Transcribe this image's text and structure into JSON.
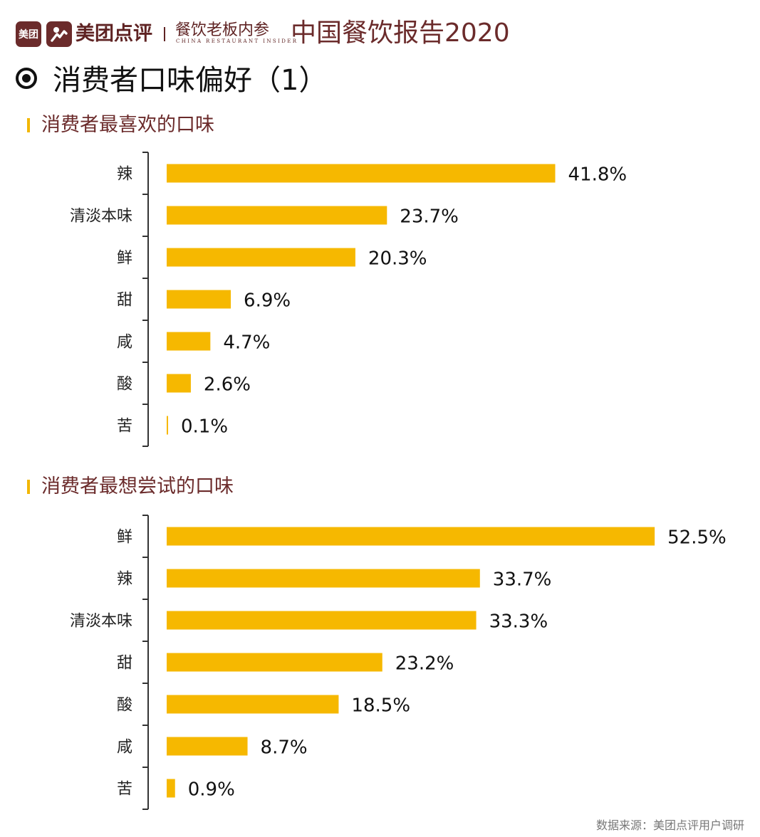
{
  "header": {
    "logo_meituan": "美团",
    "brand_name": "美团点评",
    "partner_name": "餐饮老板内参",
    "partner_sub": "CHINA RESTAURANT INSIDER",
    "report_title": "中国餐饮报告2020"
  },
  "page_title": "消费者口味偏好（1）",
  "sections": [
    {
      "title": "消费者最喜欢的口味"
    },
    {
      "title": "消费者最想尝试的口味"
    }
  ],
  "colors": {
    "bar": "#f6b800",
    "brand": "#6b2b2b",
    "marker": "#f2b705"
  },
  "chart_data": [
    {
      "type": "bar",
      "orientation": "horizontal",
      "title": "消费者最喜欢的口味",
      "categories": [
        "辣",
        "清淡本味",
        "鲜",
        "甜",
        "咸",
        "酸",
        "苦"
      ],
      "values": [
        41.8,
        23.7,
        20.3,
        6.9,
        4.7,
        2.6,
        0.1
      ],
      "value_labels": [
        "41.8%",
        "23.7%",
        "20.3%",
        "6.9%",
        "4.7%",
        "2.6%",
        "0.1%"
      ],
      "unit": "%",
      "xlim": [
        0,
        60
      ],
      "grid": false
    },
    {
      "type": "bar",
      "orientation": "horizontal",
      "title": "消费者最想尝试的口味",
      "categories": [
        "鲜",
        "辣",
        "清淡本味",
        "甜",
        "酸",
        "咸",
        "苦"
      ],
      "values": [
        52.5,
        33.7,
        33.3,
        23.2,
        18.5,
        8.7,
        0.9
      ],
      "value_labels": [
        "52.5%",
        "33.7%",
        "33.3%",
        "23.2%",
        "18.5%",
        "8.7%",
        "0.9%"
      ],
      "unit": "%",
      "xlim": [
        0,
        60
      ],
      "grid": false
    }
  ],
  "source": "数据来源：美团点评用户调研"
}
